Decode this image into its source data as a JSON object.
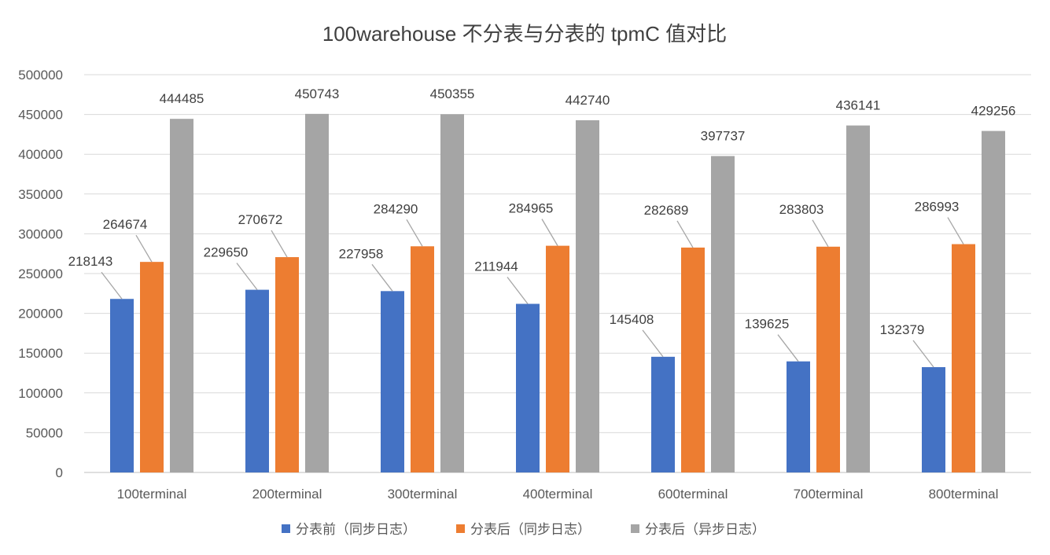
{
  "chart_data": {
    "type": "bar",
    "title": "100warehouse 不分表与分表的 tpmC 值对比",
    "categories": [
      "100terminal",
      "200terminal",
      "300terminal",
      "400terminal",
      "600terminal",
      "700terminal",
      "800terminal"
    ],
    "series": [
      {
        "name": "分表前（同步日志）",
        "color": "#4472c4",
        "values": [
          218143,
          229650,
          227958,
          211944,
          145408,
          139625,
          132379
        ]
      },
      {
        "name": "分表后（同步日志）",
        "color": "#ed7d31",
        "values": [
          264674,
          270672,
          284290,
          284965,
          282689,
          283803,
          286993
        ]
      },
      {
        "name": "分表后（异步日志）",
        "color": "#a5a5a5",
        "values": [
          444485,
          450743,
          450355,
          442740,
          397737,
          436141,
          429256
        ]
      }
    ],
    "ylim": [
      0,
      500000
    ],
    "yticks": [
      "0",
      "50000",
      "100000",
      "150000",
      "200000",
      "250000",
      "300000",
      "350000",
      "400000",
      "450000",
      "500000"
    ],
    "grid": true,
    "legend": "bottom"
  }
}
